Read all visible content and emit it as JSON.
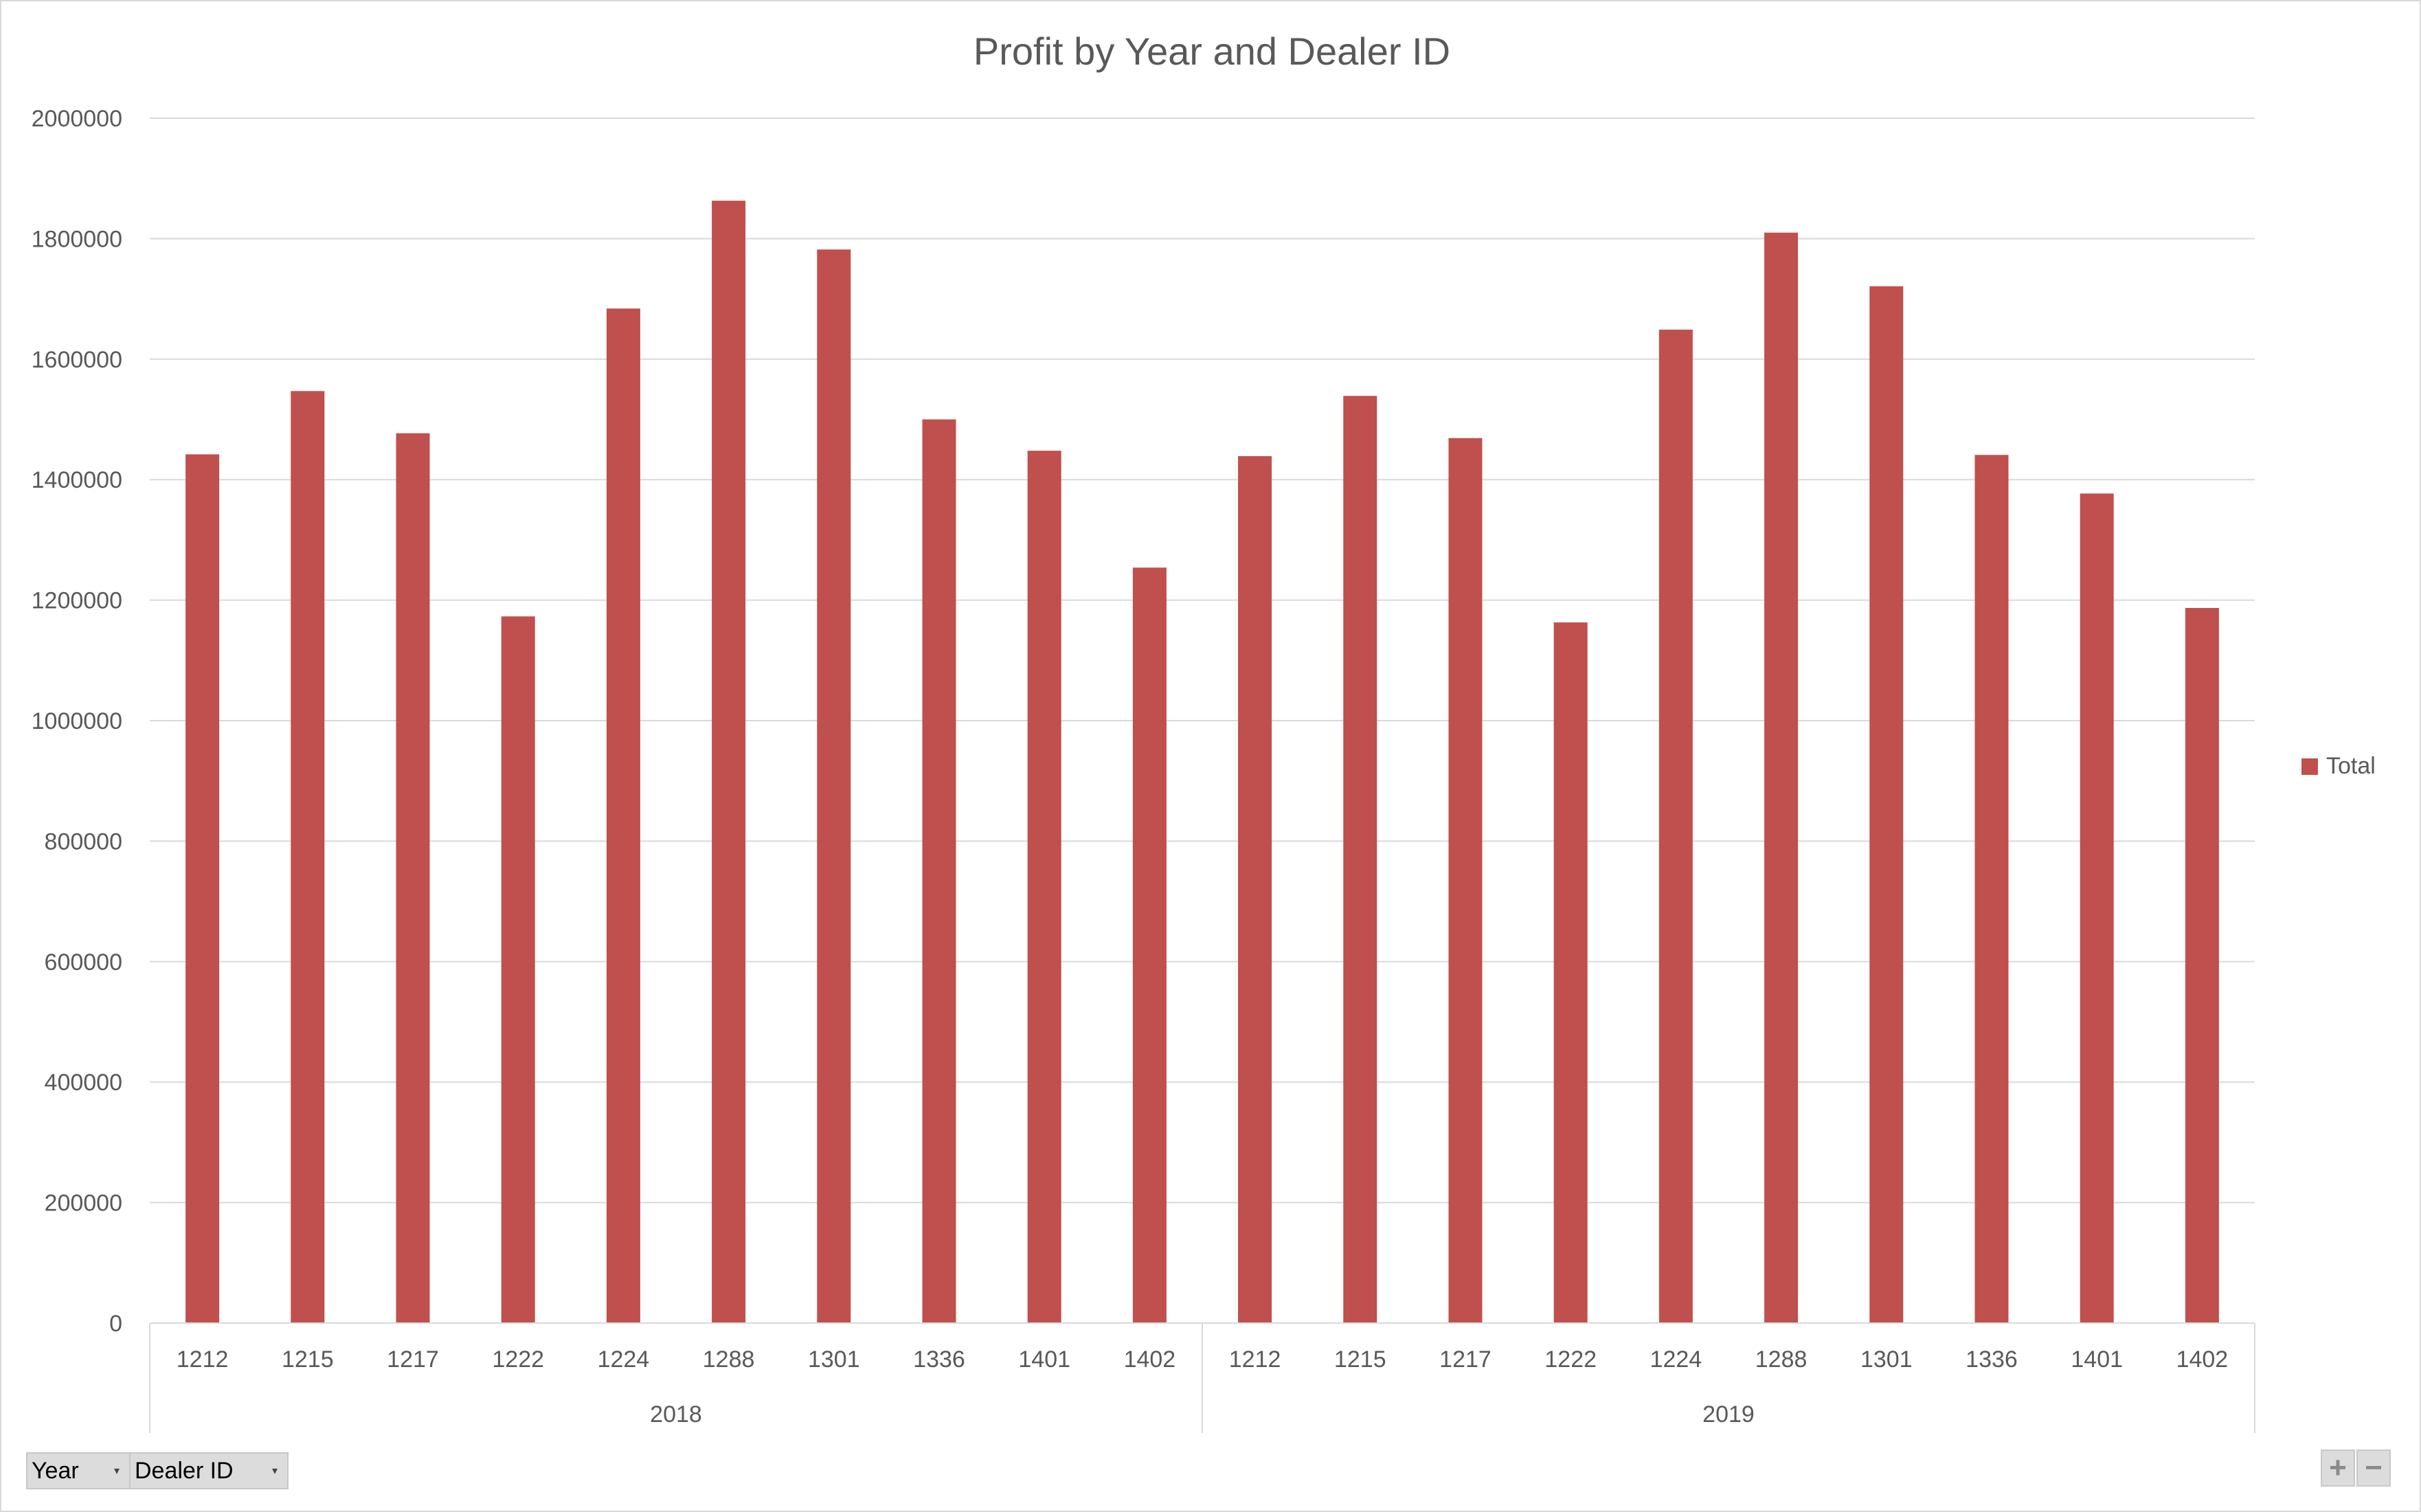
{
  "colors": {
    "bar": "#c0504d",
    "gridline": "#d9d9d9",
    "axis_text": "#595959",
    "title_text": "#595959"
  },
  "chart_data": {
    "type": "bar",
    "title": "Profit by Year and Dealer ID",
    "xlabel": "",
    "ylabel": "",
    "ylim": [
      0,
      2000000
    ],
    "yticks": [
      0,
      200000,
      400000,
      600000,
      800000,
      1000000,
      1200000,
      1400000,
      1600000,
      1800000,
      2000000
    ],
    "ytick_labels": [
      "0",
      "200000",
      "400000",
      "600000",
      "800000",
      "1000000",
      "1200000",
      "1400000",
      "1600000",
      "1800000",
      "2000000"
    ],
    "grid": true,
    "legend_position": "right",
    "groups": [
      {
        "label": "2018",
        "categories": [
          "1212",
          "1215",
          "1217",
          "1222",
          "1224",
          "1288",
          "1301",
          "1336",
          "1401",
          "1402"
        ]
      },
      {
        "label": "2019",
        "categories": [
          "1212",
          "1215",
          "1217",
          "1222",
          "1224",
          "1288",
          "1301",
          "1336",
          "1401",
          "1402"
        ]
      }
    ],
    "series": [
      {
        "name": "Total",
        "values": [
          1442000,
          1547000,
          1477000,
          1173000,
          1684000,
          1863000,
          1782000,
          1500000,
          1448000,
          1254000,
          1439000,
          1539000,
          1469000,
          1163000,
          1649000,
          1810000,
          1721000,
          1441000,
          1377000,
          1187000
        ]
      }
    ]
  },
  "field_buttons": {
    "year": "Year",
    "dealer_id": "Dealer ID"
  },
  "zoom_buttons": {
    "plus": "+",
    "minus": "−"
  }
}
